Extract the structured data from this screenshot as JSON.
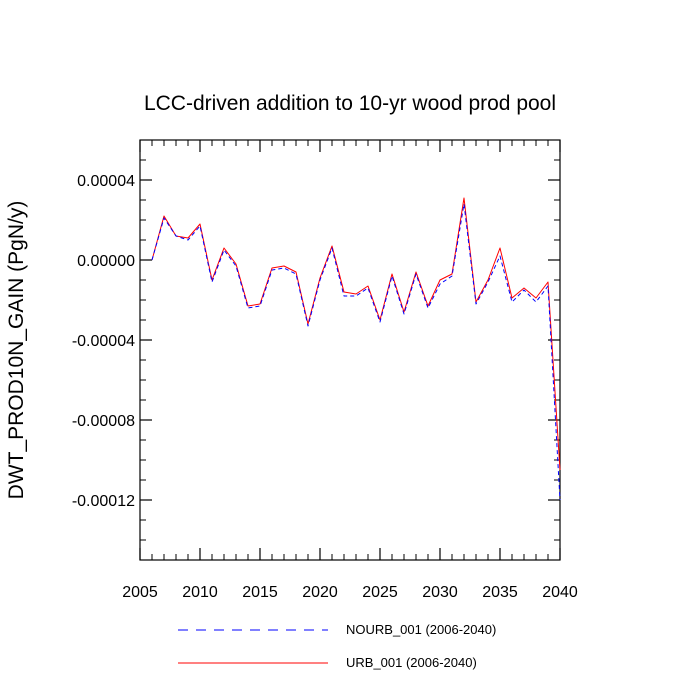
{
  "chart_data": {
    "type": "line",
    "title": "LCC-driven addition to 10-yr wood prod pool",
    "xlabel": "",
    "ylabel": "DWT_PROD10N_GAIN  (PgN/y)",
    "xlim": [
      2005,
      2040
    ],
    "ylim": [
      -0.00015,
      6e-05
    ],
    "xticks": [
      2005,
      2010,
      2015,
      2020,
      2025,
      2030,
      2035,
      2040
    ],
    "xtick_labels": [
      "2005",
      "2010",
      "2015",
      "2020",
      "2025",
      "2030",
      "2035",
      "2040"
    ],
    "yticks": [
      4e-05,
      0.0,
      -4e-05,
      -8e-05,
      -0.00012
    ],
    "ytick_labels": [
      "0.00004",
      "0.00000",
      "-0.00004",
      "-0.00008",
      "-0.00012"
    ],
    "grid": false,
    "legend_position": "bottom",
    "x": [
      2006,
      2007,
      2008,
      2009,
      2010,
      2011,
      2012,
      2013,
      2014,
      2015,
      2016,
      2017,
      2018,
      2019,
      2020,
      2021,
      2022,
      2023,
      2024,
      2025,
      2026,
      2027,
      2028,
      2029,
      2030,
      2031,
      2032,
      2033,
      2034,
      2035,
      2036,
      2037,
      2038,
      2039,
      2040
    ],
    "series": [
      {
        "name": "NOURB_001 (2006-2040)",
        "color": "#0000ff",
        "style": "dashed",
        "values": [
          0.0,
          2.1e-05,
          1.2e-05,
          1e-05,
          1.7e-05,
          -1.1e-05,
          5e-06,
          -3e-06,
          -2.4e-05,
          -2.3e-05,
          -5e-06,
          -4e-06,
          -7e-06,
          -3.3e-05,
          -1e-05,
          6e-06,
          -1.8e-05,
          -1.8e-05,
          -1.4e-05,
          -3.1e-05,
          -8e-06,
          -2.7e-05,
          -7e-06,
          -2.4e-05,
          -1.2e-05,
          -8e-06,
          2.8e-05,
          -2.2e-05,
          -1.1e-05,
          2e-06,
          -2.1e-05,
          -1.5e-05,
          -2.1e-05,
          -1.3e-05,
          -0.00012
        ]
      },
      {
        "name": "URB_001 (2006-2040)",
        "color": "#ff0000",
        "style": "solid",
        "values": [
          0.0,
          2.2e-05,
          1.2e-05,
          1.1e-05,
          1.8e-05,
          -1e-05,
          6e-06,
          -2e-06,
          -2.3e-05,
          -2.2e-05,
          -4e-06,
          -3e-06,
          -6e-06,
          -3.2e-05,
          -9e-06,
          7e-06,
          -1.6e-05,
          -1.7e-05,
          -1.3e-05,
          -3e-05,
          -7e-06,
          -2.6e-05,
          -6e-06,
          -2.3e-05,
          -1e-05,
          -7e-06,
          3.1e-05,
          -2.1e-05,
          -1e-05,
          6e-06,
          -1.9e-05,
          -1.4e-05,
          -1.9e-05,
          -1.1e-05,
          -0.000105
        ]
      }
    ]
  }
}
